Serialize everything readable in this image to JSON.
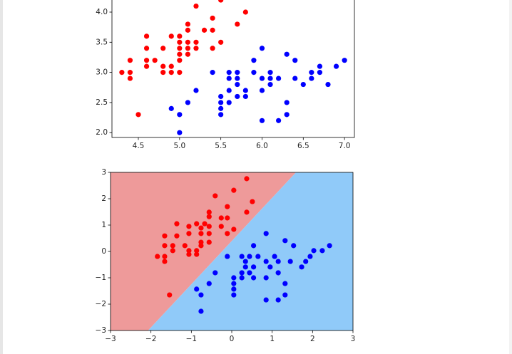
{
  "chart_data": [
    {
      "type": "scatter",
      "xlim": [
        4.18,
        7.12
      ],
      "ylim": [
        1.92,
        4.52
      ],
      "xticks": [
        4.5,
        {
          "value": 5,
          "label": "5.0"
        },
        5.5,
        {
          "value": 6,
          "label": "6.0"
        },
        6.5,
        {
          "value": 7,
          "label": "7.0"
        }
      ],
      "yticks": [
        {
          "value": 2,
          "label": "2.0"
        },
        2.5,
        {
          "value": 3,
          "label": "3.0"
        },
        3.5,
        {
          "value": 4,
          "label": "4.0"
        }
      ],
      "series": [
        {
          "color": "#ff0000",
          "x": [
            4.3,
            4.4,
            4.4,
            4.4,
            4.5,
            4.6,
            4.6,
            4.6,
            4.6,
            4.7,
            4.8,
            4.8,
            4.8,
            4.9,
            4.9,
            4.9,
            5.0,
            5.0,
            5.0,
            5.0,
            5.0,
            5.0,
            5.1,
            5.1,
            5.1,
            5.1,
            5.1,
            5.2,
            5.2,
            5.2,
            5.3,
            5.4,
            5.4,
            5.4,
            5.5,
            5.5,
            5.7,
            5.8
          ],
          "values": [
            3.0,
            3.2,
            3.0,
            2.9,
            2.3,
            3.6,
            3.4,
            3.2,
            3.1,
            3.2,
            3.4,
            3.0,
            3.1,
            3.6,
            3.1,
            3.0,
            3.6,
            3.5,
            3.4,
            3.3,
            3.0,
            3.2,
            3.8,
            3.5,
            3.7,
            3.3,
            3.4,
            4.1,
            3.5,
            3.4,
            3.7,
            3.9,
            3.7,
            3.4,
            4.2,
            3.5,
            3.8,
            4.0
          ]
        },
        {
          "color": "#0000ff",
          "x": [
            5.4,
            5.0,
            4.9,
            5.0,
            5.1,
            5.2,
            5.5,
            5.5,
            5.5,
            5.5,
            5.6,
            5.6,
            5.6,
            5.6,
            5.7,
            5.7,
            5.7,
            5.7,
            5.8,
            5.8,
            5.9,
            5.9,
            6.0,
            6.0,
            6.0,
            6.0,
            6.1,
            6.1,
            6.1,
            6.2,
            6.2,
            6.3,
            6.3,
            6.3,
            6.4,
            6.4,
            6.5,
            6.6,
            6.6,
            6.7,
            6.7,
            6.8,
            6.9,
            7.0
          ],
          "values": [
            3.0,
            2.0,
            2.4,
            2.3,
            2.5,
            2.7,
            2.6,
            2.5,
            2.4,
            2.3,
            3.0,
            2.9,
            2.7,
            2.5,
            3.0,
            2.9,
            2.8,
            2.6,
            2.7,
            2.6,
            3.2,
            3.0,
            3.4,
            2.9,
            2.7,
            2.2,
            3.0,
            2.9,
            2.8,
            2.9,
            2.2,
            3.3,
            2.5,
            2.3,
            3.2,
            2.9,
            2.8,
            3.0,
            2.9,
            3.1,
            3.0,
            2.8,
            3.1,
            3.2
          ]
        }
      ]
    },
    {
      "type": "scatter",
      "xlim": [
        -3,
        3
      ],
      "ylim": [
        -3,
        3
      ],
      "xticks": [
        {
          "value": -3,
          "label": "−3"
        },
        {
          "value": -2,
          "label": "−2"
        },
        {
          "value": -1,
          "label": "−1"
        },
        0,
        1,
        2,
        3
      ],
      "yticks": [
        {
          "value": -3,
          "label": "−3"
        },
        {
          "value": -2,
          "label": "−2"
        },
        {
          "value": -1,
          "label": "−1"
        },
        0,
        1,
        2,
        3
      ],
      "boundary": {
        "x": [
          -2.07,
          1.59
        ],
        "y": [
          -3,
          3
        ]
      },
      "region_colors": [
        "#ee9a9a",
        "#90caf9"
      ],
      "series": [
        {
          "color": "#ff0000",
          "x": [
            0.37,
            0.05,
            -0.41,
            0.51,
            0.37,
            -0.11,
            -0.56,
            -0.56,
            -0.26,
            -0.11,
            -1.36,
            -0.87,
            -0.67,
            -1.06,
            -0.76,
            -0.56,
            -0.26,
            0.05,
            -0.11,
            -1.66,
            -1.36,
            -1.06,
            -0.76,
            -0.56,
            -1.66,
            -1.46,
            -1.16,
            -0.76,
            -0.76,
            -0.56,
            -1.06,
            -0.87,
            -1.46,
            -0.87,
            -1.06,
            -1.84,
            -1.66,
            -1.66,
            -1.54
          ],
          "values": [
            2.76,
            2.32,
            2.11,
            1.89,
            1.49,
            1.7,
            1.49,
            1.32,
            1.27,
            1.27,
            1.05,
            1.05,
            1.05,
            0.95,
            0.89,
            0.95,
            0.95,
            0.84,
            0.68,
            0.59,
            0.59,
            0.68,
            0.68,
            0.68,
            0.22,
            0.22,
            0.22,
            0.35,
            0.22,
            0.35,
            0.03,
            0.03,
            0.03,
            -0.11,
            -0.11,
            -0.19,
            -0.19,
            -0.38,
            -1.65
          ]
        },
        {
          "color": "#0000ff",
          "x": [
            0.85,
            1.32,
            1.53,
            2.42,
            2.24,
            2.03,
            1.94,
            1.83,
            1.73,
            1.45,
            1.15,
            1.06,
            0.85,
            0.95,
            0.65,
            0.54,
            0.25,
            0.34,
            0.44,
            0.34,
            0.54,
            0.44,
            0.25,
            0.54,
            0.25,
            0.05,
            0.05,
            0.05,
            0.05,
            -0.11,
            -0.41,
            -0.56,
            -0.76,
            -0.87,
            -0.76,
            0.85,
            1.15,
            1.32,
            1.32,
            0.85,
            1.15
          ],
          "values": [
            0.68,
            0.41,
            0.22,
            0.22,
            0.03,
            0.03,
            -0.19,
            -0.38,
            -0.59,
            -0.38,
            -0.38,
            -0.19,
            -0.38,
            -0.59,
            -0.19,
            0.22,
            -0.19,
            -0.38,
            -0.19,
            -0.59,
            -0.59,
            -0.81,
            -0.81,
            -1.0,
            -1.0,
            -1.0,
            -1.22,
            -1.43,
            -1.65,
            -0.19,
            -0.81,
            -1.22,
            -1.65,
            -1.43,
            -2.27,
            -1.84,
            -1.84,
            -1.65,
            -1.22,
            -1.0,
            -0.81
          ]
        }
      ]
    }
  ]
}
